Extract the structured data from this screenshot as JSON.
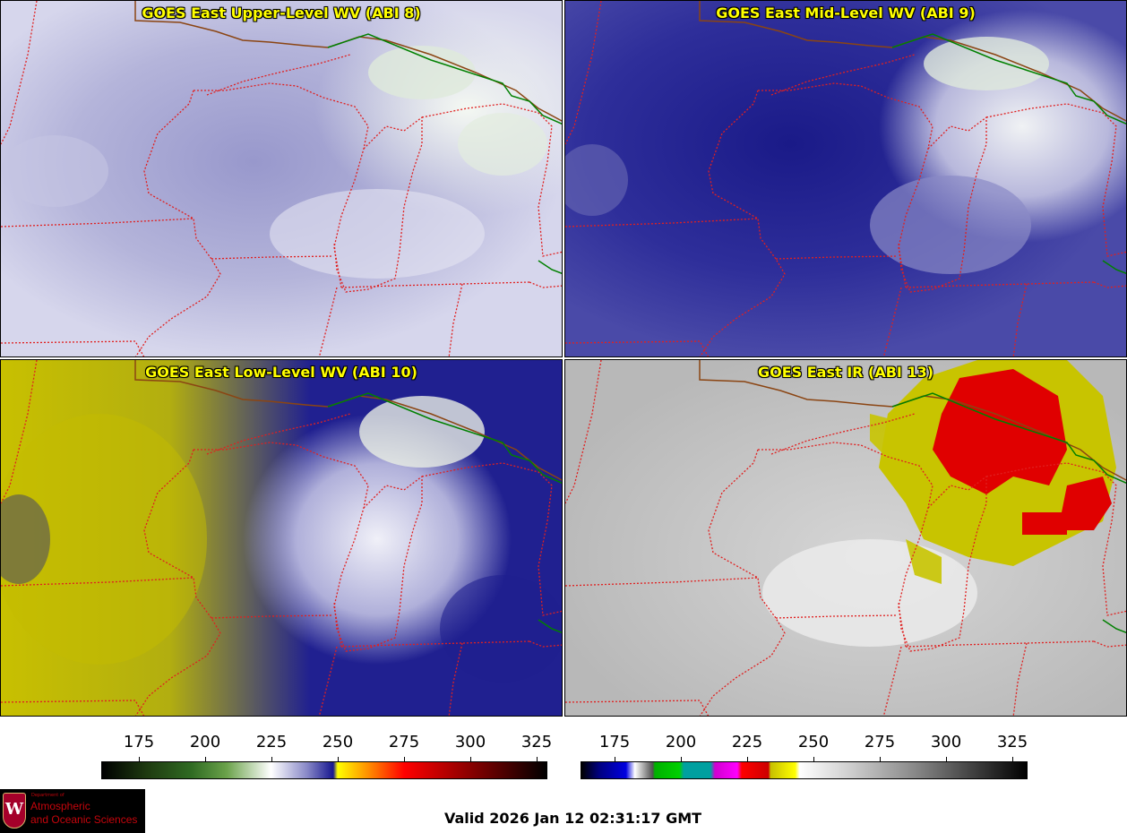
{
  "panels": [
    {
      "title": "GOES East Upper-Level WV (ABI 8)"
    },
    {
      "title": "GOES East Mid-Level WV (ABI 9)"
    },
    {
      "title": "GOES East Low-Level WV (ABI 10)"
    },
    {
      "title": "GOES East IR (ABI 13)"
    }
  ],
  "colorbars": {
    "wv": {
      "ticks": [
        "175",
        "200",
        "225",
        "250",
        "275",
        "300",
        "325"
      ]
    },
    "ir": {
      "ticks": [
        "175",
        "200",
        "225",
        "250",
        "275",
        "300",
        "325"
      ]
    }
  },
  "logo": {
    "crest": "W",
    "line1": "Department of",
    "line2": "Atmospheric",
    "line3": "and Oceanic Sciences"
  },
  "valid_time": "Valid 2026 Jan 12 02:31:17 GMT",
  "colors": {
    "state_borders": "#e02020",
    "international_border": "#008000",
    "coastline": "#8b4513"
  }
}
